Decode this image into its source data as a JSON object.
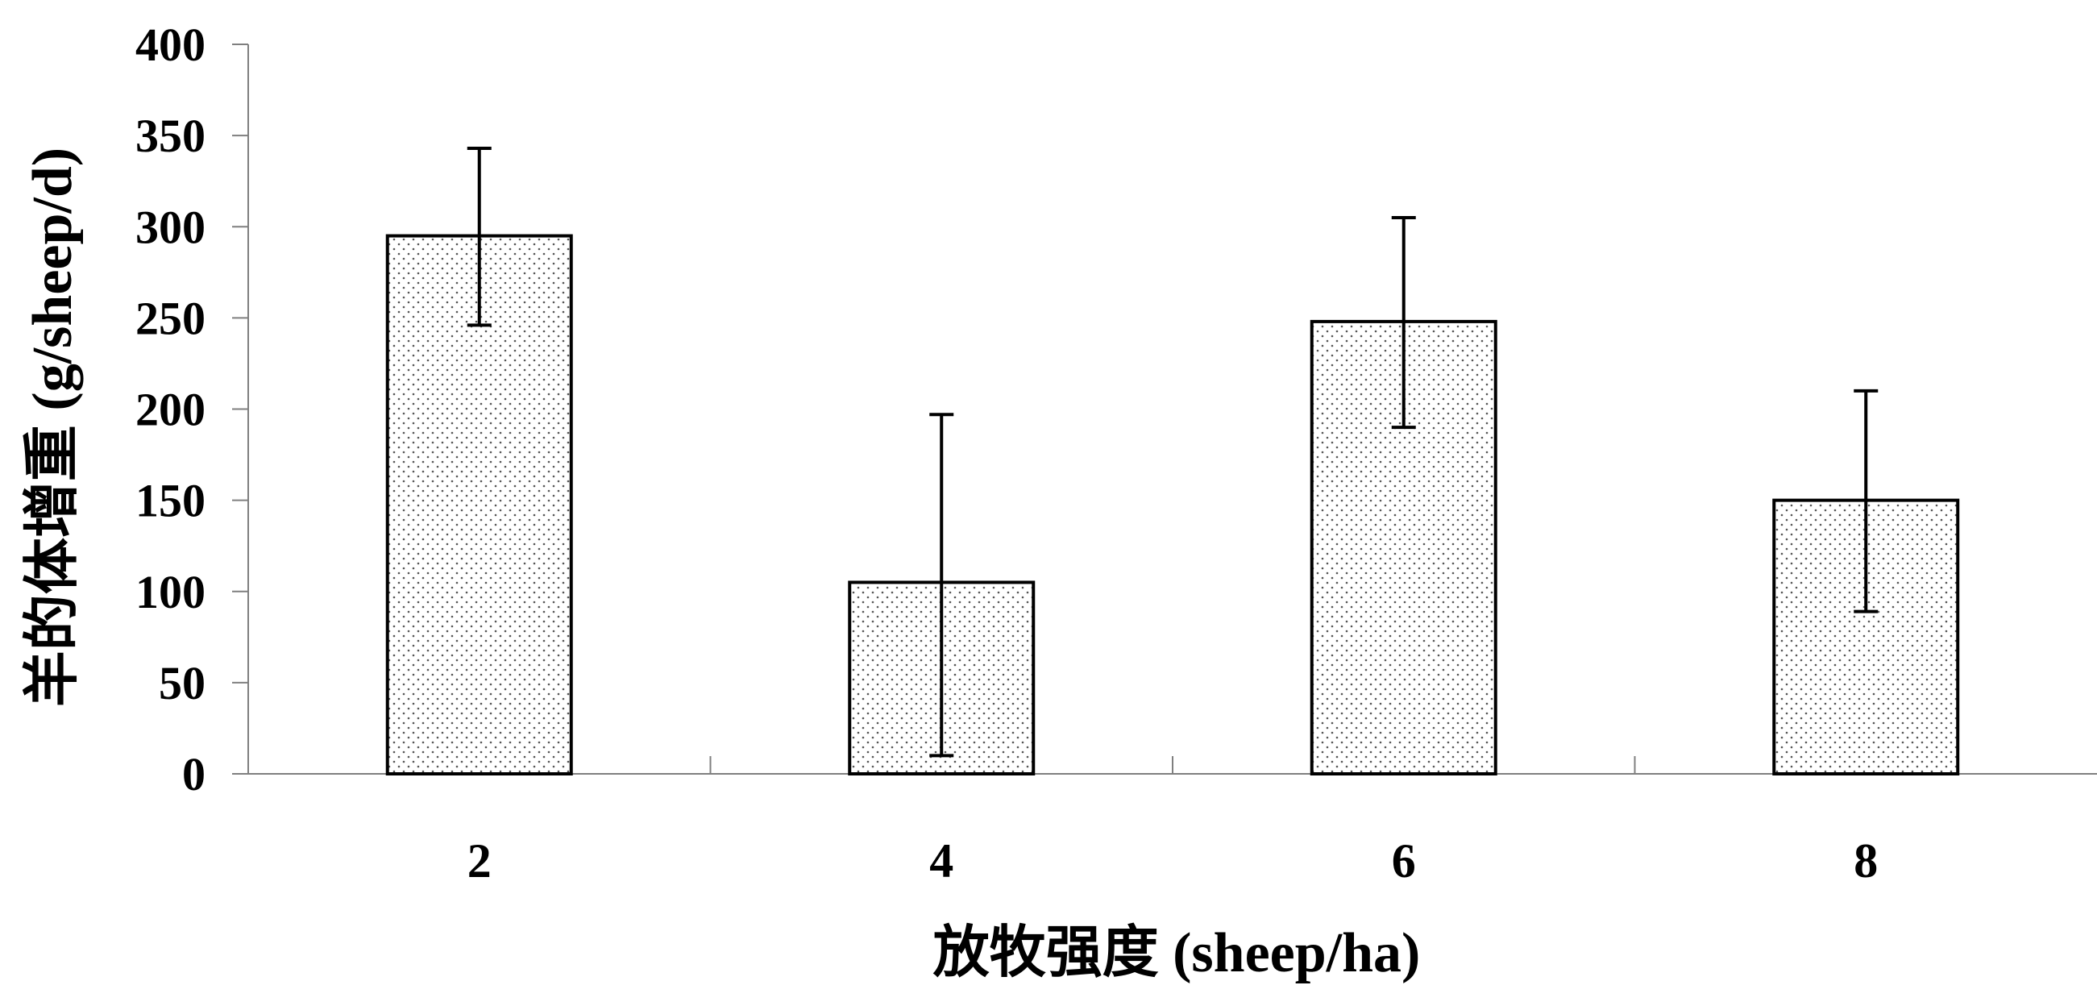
{
  "chart_data": {
    "type": "bar",
    "categories": [
      "2",
      "4",
      "6",
      "8"
    ],
    "values": [
      295,
      105,
      248,
      150
    ],
    "error_low": [
      246,
      10,
      190,
      89
    ],
    "error_high": [
      343,
      197,
      305,
      210
    ],
    "title": "",
    "xlabel": "放牧强度 (sheep/ha)",
    "ylabel": "羊的体增重 (g/sheep/d)",
    "ylim": [
      0,
      400
    ],
    "yticks": [
      "0",
      "50",
      "100",
      "150",
      "200",
      "250",
      "300",
      "350",
      "400"
    ],
    "grid": false,
    "legend": "none",
    "bar_fill": "#ffffff",
    "bar_pattern": "dotted",
    "bar_stroke": "#000000",
    "axis_color": "#7f7f7f"
  }
}
